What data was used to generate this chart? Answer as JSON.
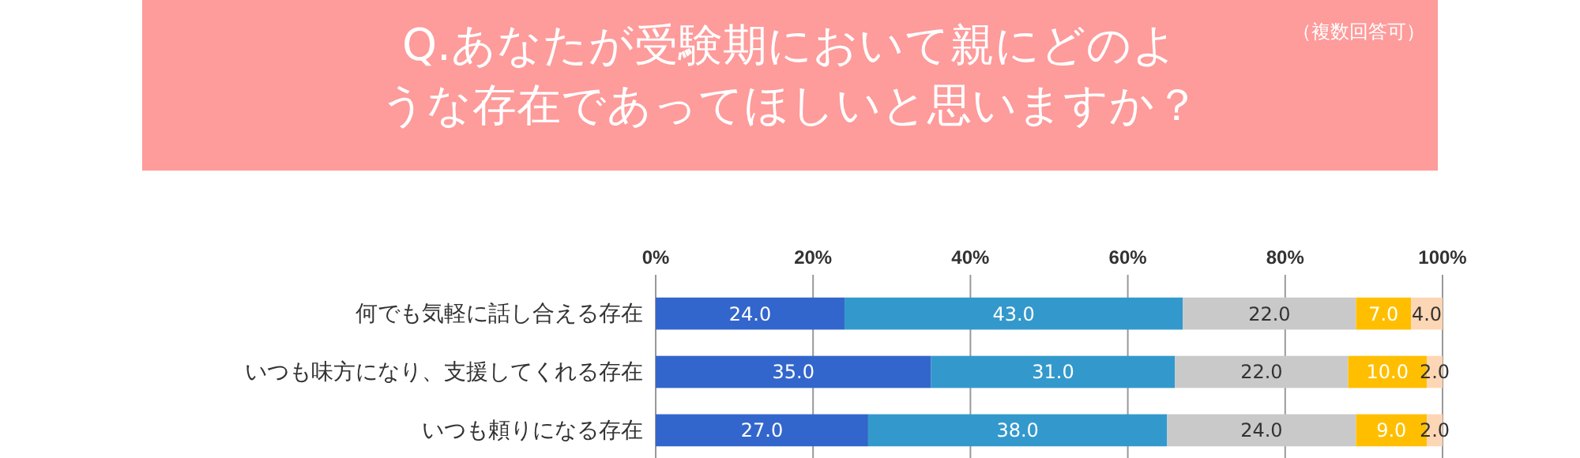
{
  "chart_data": {
    "type": "bar",
    "orientation": "horizontal",
    "stacked": true,
    "title": "Q.あなたが受験期において親にどのような存在であってほしいと思いますか？",
    "subtitle": "（複数回答可）",
    "categories": [
      "何でも気軽に話し合える存在",
      "いつも味方になり、支援してくれる存在",
      "いつも頼りになる存在"
    ],
    "series": [
      {
        "color": "#3366cc",
        "values": [
          24,
          35,
          27
        ],
        "value_labels": [
          "24.0",
          "35.0",
          "27.0"
        ]
      },
      {
        "color": "#3399cc",
        "values": [
          43,
          31,
          38
        ],
        "value_labels": [
          "43.0",
          "31.0",
          "38.0"
        ]
      },
      {
        "color": "#c9c9c9",
        "values": [
          22,
          22,
          24
        ],
        "value_labels": [
          "22.0",
          "22.0",
          "24.0"
        ]
      },
      {
        "color": "#ffbf00",
        "values": [
          7,
          10,
          9
        ],
        "value_labels": [
          "7.0",
          "10.0",
          "9.0"
        ]
      },
      {
        "color": "#fdd6b5",
        "values": [
          4,
          2,
          2
        ],
        "value_labels": [
          "4.0",
          "2.0",
          "2.0"
        ]
      }
    ],
    "xlim": [
      0,
      100
    ],
    "xticks": [
      {
        "value": 0,
        "label": "0%"
      },
      {
        "value": 20,
        "label": "20%"
      },
      {
        "value": 40,
        "label": "40%"
      },
      {
        "value": 60,
        "label": "60%"
      },
      {
        "value": 80,
        "label": "80%"
      },
      {
        "value": 100,
        "label": "100%"
      }
    ],
    "grid": "x"
  }
}
